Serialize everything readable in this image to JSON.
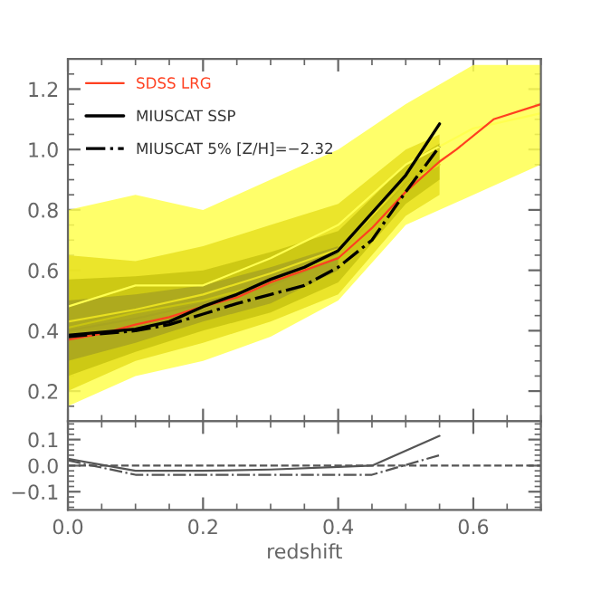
{
  "chart_data": [
    {
      "type": "line",
      "legend": "top left",
      "tick_labels": "y",
      "xlim": [
        0.0,
        0.7
      ],
      "xticks": [
        0.0,
        0.2,
        0.4,
        0.6
      ],
      "ylim": [
        0.1,
        1.3
      ],
      "yticks": [
        0.2,
        0.4,
        0.6,
        0.8,
        {
          "value": 1.0,
          "label": "1.0"
        },
        1.2
      ],
      "series": [
        {
          "type": "line",
          "color": "#ffff50",
          "x": [
            0.0,
            0.1,
            0.2,
            0.3,
            0.4,
            0.5,
            0.6,
            0.7
          ],
          "lower": [
            0.15,
            0.25,
            0.3,
            0.38,
            0.5,
            0.75,
            0.85,
            0.95
          ],
          "upper": [
            0.8,
            0.85,
            0.8,
            0.9,
            1.0,
            1.15,
            1.28,
            1.28
          ],
          "values": [
            0.48,
            0.55,
            0.55,
            0.64,
            0.75,
            0.95,
            1.07,
            1.12
          ]
        },
        {
          "type": "line",
          "color": "#e8e020",
          "x": [
            0.0,
            0.1,
            0.2,
            0.3,
            0.4,
            0.5,
            0.55
          ],
          "lower": [
            0.2,
            0.3,
            0.36,
            0.43,
            0.52,
            0.78,
            0.85
          ],
          "upper": [
            0.65,
            0.63,
            0.68,
            0.75,
            0.82,
            1.0,
            1.05
          ],
          "values": [
            0.43,
            0.47,
            0.52,
            0.59,
            0.67,
            0.89,
            0.95
          ]
        },
        {
          "type": "line",
          "color": "#c8c410",
          "x": [
            0.0,
            0.1,
            0.2,
            0.3,
            0.4,
            0.5,
            0.55
          ],
          "lower": [
            0.25,
            0.33,
            0.4,
            0.46,
            0.56,
            0.82,
            0.9
          ],
          "upper": [
            0.57,
            0.58,
            0.6,
            0.66,
            0.73,
            0.95,
            1.02
          ],
          "values": [
            0.41,
            0.46,
            0.5,
            0.56,
            0.65,
            0.89,
            0.96
          ]
        },
        {
          "type": "line",
          "color": "#a8a420",
          "x": [
            0.0,
            0.1,
            0.2,
            0.3,
            0.4
          ],
          "lower": [
            0.3,
            0.36,
            0.43,
            0.49,
            0.6
          ],
          "upper": [
            0.5,
            0.52,
            0.55,
            0.61,
            0.68
          ],
          "values": [
            0.4,
            0.44,
            0.49,
            0.55,
            0.64
          ]
        },
        {
          "name": "SDSS LRG",
          "color": "#ff4020",
          "line_style": "solid",
          "x": [
            0.0,
            0.05,
            0.1,
            0.15,
            0.2,
            0.25,
            0.3,
            0.35,
            0.4,
            0.45,
            0.5,
            0.55,
            0.575,
            0.63,
            0.7
          ],
          "values": [
            0.37,
            0.39,
            0.42,
            0.445,
            0.48,
            0.51,
            0.56,
            0.6,
            0.64,
            0.74,
            0.86,
            0.96,
            1.0,
            1.1,
            1.15
          ]
        },
        {
          "name": "MIUSCAT SSP",
          "color": "#000000",
          "line_style": "solid",
          "x": [
            0.0,
            0.1,
            0.15,
            0.2,
            0.25,
            0.3,
            0.35,
            0.4,
            0.5,
            0.55
          ],
          "values": [
            0.385,
            0.405,
            0.43,
            0.48,
            0.52,
            0.57,
            0.61,
            0.665,
            0.915,
            1.085
          ]
        },
        {
          "name": "MIUSCAT 5% [Z/H]=−2.32",
          "color": "#000000",
          "line_style": "dashdot",
          "x": [
            0.0,
            0.1,
            0.15,
            0.2,
            0.25,
            0.3,
            0.35,
            0.4,
            0.45,
            0.5,
            0.55
          ],
          "values": [
            0.38,
            0.4,
            0.42,
            0.455,
            0.49,
            0.52,
            0.55,
            0.61,
            0.7,
            0.86,
            1.01
          ]
        }
      ]
    },
    {
      "type": "line",
      "xlabel": "redshift",
      "xlim": [
        0.0,
        0.7
      ],
      "xticks": [
        {
          "value": 0.0,
          "label": "0.0"
        },
        0.2,
        0.4,
        0.6
      ],
      "ylim": [
        -0.17,
        0.17
      ],
      "yticks": [
        {
          "value": -0.1,
          "label": "−0.1"
        },
        {
          "value": 0.0,
          "label": "0.0"
        },
        {
          "value": 0.1,
          "label": "0.1"
        }
      ],
      "ref_lines": [
        {
          "axis": "y",
          "value": 0.0,
          "label": null,
          "color": "#555555",
          "line_style": "dashed"
        }
      ],
      "series": [
        {
          "color": "#555555",
          "line_style": "solid",
          "x": [
            0.0,
            0.1,
            0.2,
            0.3,
            0.4,
            0.45,
            0.55
          ],
          "values": [
            0.026,
            -0.02,
            -0.02,
            -0.015,
            -0.005,
            0.0,
            0.114
          ]
        },
        {
          "color": "#555555",
          "line_style": "dashdot",
          "x": [
            0.0,
            0.1,
            0.2,
            0.3,
            0.4,
            0.45,
            0.55
          ],
          "values": [
            0.02,
            -0.035,
            -0.035,
            -0.035,
            -0.035,
            -0.035,
            0.04
          ]
        }
      ]
    }
  ]
}
